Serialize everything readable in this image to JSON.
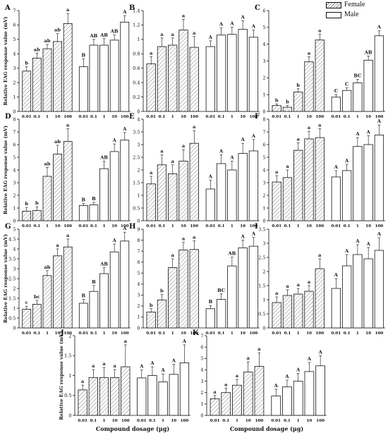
{
  "legend": {
    "female": "Female",
    "male": "Male"
  },
  "colors": {
    "axis": "#111111",
    "female_hatch": "#888888",
    "male_fill": "#ffffff"
  },
  "chart_data": [
    {
      "type": "bar",
      "panel": "A",
      "ylabel": "Relative EAG response value (mV)",
      "xlabel": "",
      "ylim": [
        0,
        7
      ],
      "yticks": [
        0,
        1,
        2,
        3,
        4,
        5,
        6,
        7
      ],
      "categories": [
        "0.01",
        "0.1",
        "1",
        "10",
        "100"
      ],
      "series": [
        {
          "name": "Female",
          "values": [
            2.8,
            3.7,
            4.35,
            4.85,
            6.1
          ],
          "errors": [
            0.3,
            0.35,
            0.3,
            0.55,
            0.7
          ],
          "letters": [
            "b",
            "ab",
            "ab",
            "ab",
            "a"
          ]
        },
        {
          "name": "Male",
          "values": [
            3.1,
            4.6,
            4.6,
            4.95,
            6.2
          ],
          "errors": [
            0.55,
            0.4,
            0.45,
            0.35,
            0.45
          ],
          "letters": [
            "B",
            "AB",
            "AB",
            "AB",
            "A"
          ]
        }
      ]
    },
    {
      "type": "bar",
      "panel": "B",
      "ylabel": "",
      "xlabel": "",
      "ylim": [
        0,
        1.4
      ],
      "yticks": [
        0,
        0.2,
        0.4,
        0.6,
        0.8,
        1.0,
        1.2,
        1.4
      ],
      "categories": [
        "0.01",
        "0.1",
        "1",
        "10",
        "100"
      ],
      "series": [
        {
          "name": "Female",
          "values": [
            0.66,
            0.9,
            0.92,
            1.13,
            0.89
          ],
          "errors": [
            0.1,
            0.12,
            0.1,
            0.15,
            0.15
          ],
          "letters": [
            "a",
            "a",
            "a",
            "a",
            "a"
          ]
        },
        {
          "name": "Male",
          "values": [
            0.9,
            1.06,
            1.07,
            1.14,
            1.03
          ],
          "errors": [
            0.08,
            0.1,
            0.1,
            0.12,
            0.1
          ],
          "letters": [
            "A",
            "A",
            "A",
            "A",
            "A"
          ]
        }
      ]
    },
    {
      "type": "bar",
      "panel": "C",
      "ylabel": "",
      "xlabel": "",
      "ylim": [
        0,
        6
      ],
      "yticks": [
        0,
        1,
        2,
        3,
        4,
        5,
        6
      ],
      "categories": [
        "0.01",
        "0.1",
        "1",
        "10",
        "100"
      ],
      "series": [
        {
          "name": "Female",
          "values": [
            0.35,
            0.25,
            1.15,
            2.95,
            4.25
          ],
          "errors": [
            0.1,
            0.1,
            0.2,
            0.3,
            0.35
          ],
          "letters": [
            "b",
            "b",
            "b",
            "a",
            "a"
          ]
        },
        {
          "name": "Male",
          "values": [
            0.85,
            1.25,
            1.7,
            3.05,
            4.5
          ],
          "errors": [
            0.15,
            0.15,
            0.2,
            0.25,
            0.3
          ],
          "letters": [
            "C",
            "C",
            "BC",
            "AB",
            "A"
          ]
        }
      ]
    },
    {
      "type": "bar",
      "panel": "D",
      "ylabel": "Relative EAG response value (mV)",
      "xlabel": "",
      "ylim": [
        0,
        8
      ],
      "yticks": [
        0,
        1,
        2,
        3,
        4,
        5,
        6,
        7,
        8
      ],
      "categories": [
        "0.01",
        "0.1",
        "1",
        "10",
        "100"
      ],
      "series": [
        {
          "name": "Female",
          "values": [
            0.75,
            0.8,
            3.5,
            5.25,
            6.25
          ],
          "errors": [
            0.3,
            0.3,
            0.7,
            0.7,
            1.0
          ],
          "letters": [
            "b",
            "b",
            "ab",
            "ab",
            "a"
          ]
        },
        {
          "name": "Male",
          "values": [
            1.2,
            1.25,
            4.1,
            5.45,
            6.35
          ],
          "errors": [
            0.15,
            0.2,
            0.6,
            0.6,
            0.6
          ],
          "letters": [
            "B",
            "B",
            "AB",
            "A",
            "A"
          ]
        }
      ]
    },
    {
      "type": "bar",
      "panel": "E",
      "ylabel": "",
      "xlabel": "",
      "ylim": [
        0,
        4.0
      ],
      "yticks": [
        0,
        0.5,
        1.0,
        1.5,
        2.0,
        2.5,
        3.0,
        3.5,
        4.0
      ],
      "categories": [
        "0.01",
        "0.1",
        "1",
        "10",
        "100"
      ],
      "series": [
        {
          "name": "Female",
          "values": [
            1.45,
            2.2,
            1.85,
            2.35,
            3.05
          ],
          "errors": [
            0.3,
            0.4,
            0.35,
            0.45,
            0.5
          ],
          "letters": [
            "a",
            "a",
            "a",
            "a",
            "a"
          ]
        },
        {
          "name": "Male",
          "values": [
            1.25,
            2.25,
            2.0,
            2.65,
            2.75
          ],
          "errors": [
            0.35,
            0.35,
            0.35,
            0.4,
            0.45
          ],
          "letters": [
            "A",
            "A",
            "A",
            "A",
            "A"
          ]
        }
      ]
    },
    {
      "type": "bar",
      "panel": "F",
      "ylabel": "",
      "xlabel": "",
      "ylim": [
        0,
        8
      ],
      "yticks": [
        0,
        1,
        2,
        3,
        4,
        5,
        6,
        7,
        8
      ],
      "categories": [
        "0.01",
        "0.1",
        "1",
        "10",
        "100"
      ],
      "series": [
        {
          "name": "Female",
          "values": [
            3.05,
            3.4,
            5.55,
            6.45,
            6.55
          ],
          "errors": [
            0.5,
            0.6,
            0.6,
            0.6,
            0.7
          ],
          "letters": [
            "a",
            "a",
            "a",
            "a",
            "a"
          ]
        },
        {
          "name": "Male",
          "values": [
            3.45,
            3.95,
            5.85,
            6.0,
            6.75
          ],
          "errors": [
            0.5,
            0.5,
            0.7,
            0.7,
            0.8
          ],
          "letters": [
            "A",
            "A",
            "A",
            "A",
            "A"
          ]
        }
      ]
    },
    {
      "type": "bar",
      "panel": "G",
      "ylabel": "Relative EAG response value (mV)",
      "xlabel": "",
      "ylim": [
        0,
        5
      ],
      "yticks": [
        0,
        0.5,
        1,
        1.5,
        2,
        2.5,
        3,
        3.5,
        4,
        4.5,
        5
      ],
      "categories": [
        "0.01",
        "0.1",
        "1",
        "10",
        "100"
      ],
      "series": [
        {
          "name": "Female",
          "values": [
            0.95,
            1.2,
            2.65,
            3.65,
            4.1
          ],
          "errors": [
            0.15,
            0.2,
            0.25,
            0.35,
            0.4
          ],
          "letters": [
            "c",
            "bc",
            "ab",
            "a",
            "a"
          ]
        },
        {
          "name": "Male",
          "values": [
            1.25,
            1.85,
            2.75,
            3.85,
            4.4
          ],
          "errors": [
            0.2,
            0.3,
            0.3,
            0.4,
            0.45
          ],
          "letters": [
            "B",
            "B",
            "AB",
            "A",
            "A"
          ]
        }
      ]
    },
    {
      "type": "bar",
      "panel": "H",
      "ylabel": "",
      "xlabel": "",
      "ylim": [
        0,
        9
      ],
      "yticks": [
        0,
        1,
        2,
        3,
        4,
        5,
        6,
        7,
        8,
        9
      ],
      "categories": [
        "0.01",
        "0.1",
        "1",
        "10",
        "100"
      ],
      "series": [
        {
          "name": "Female",
          "values": [
            1.45,
            2.55,
            5.5,
            7.1,
            7.15
          ],
          "errors": [
            0.3,
            0.5,
            0.8,
            0.7,
            0.8
          ],
          "letters": [
            "b",
            "b",
            "a",
            "a",
            "a"
          ]
        },
        {
          "name": "Male",
          "values": [
            1.75,
            2.6,
            5.65,
            7.3,
            7.45
          ],
          "errors": [
            0.3,
            0.5,
            0.8,
            0.7,
            0.8
          ],
          "letters": [
            "B",
            "BC",
            "AB",
            "A",
            "A"
          ]
        }
      ]
    },
    {
      "type": "bar",
      "panel": "I",
      "ylabel": "",
      "xlabel": "",
      "ylim": [
        0,
        3.5
      ],
      "yticks": [
        0,
        0.5,
        1.0,
        1.5,
        2.0,
        2.5,
        3.0,
        3.5
      ],
      "categories": [
        "0.01",
        "0.1",
        "1",
        "10",
        "100"
      ],
      "series": [
        {
          "name": "Female",
          "values": [
            0.9,
            1.15,
            1.2,
            1.3,
            2.1
          ],
          "errors": [
            0.2,
            0.2,
            0.2,
            0.2,
            0.35
          ],
          "letters": [
            "a",
            "a",
            "a",
            "a",
            "a"
          ]
        },
        {
          "name": "Male",
          "values": [
            1.4,
            2.2,
            2.6,
            2.45,
            2.75
          ],
          "errors": [
            0.35,
            0.4,
            0.35,
            0.4,
            0.45
          ],
          "letters": [
            "A",
            "A",
            "A",
            "A",
            "A"
          ]
        }
      ]
    },
    {
      "type": "bar",
      "panel": "J",
      "ylabel": "Relative EAG response value (mV)",
      "xlabel": "Compound dosage (μg)",
      "ylim": [
        0,
        2.0
      ],
      "yticks": [
        0,
        0.5,
        1.0,
        1.5,
        2.0
      ],
      "categories": [
        "0.01",
        "0.1",
        "1",
        "10",
        "100"
      ],
      "series": [
        {
          "name": "Female",
          "values": [
            0.64,
            0.95,
            0.95,
            0.95,
            1.22
          ],
          "errors": [
            0.12,
            0.2,
            0.25,
            0.2,
            0.55
          ],
          "letters": [
            "a",
            "a",
            "a",
            "a",
            "a"
          ]
        },
        {
          "name": "Male",
          "values": [
            0.94,
            1.0,
            0.84,
            1.03,
            1.32
          ],
          "errors": [
            0.2,
            0.22,
            0.2,
            0.25,
            0.45
          ],
          "letters": [
            "A",
            "A",
            "A",
            "A",
            "A"
          ]
        }
      ]
    },
    {
      "type": "bar",
      "panel": "K",
      "ylabel": "",
      "xlabel": "Compound dosage (μg)",
      "ylim": [
        0,
        7
      ],
      "yticks": [
        0,
        1,
        2,
        3,
        4,
        5,
        6,
        7
      ],
      "categories": [
        "0.01",
        "0.1",
        "1",
        "10",
        "100"
      ],
      "series": [
        {
          "name": "Female",
          "values": [
            1.45,
            2.0,
            2.65,
            3.8,
            4.3
          ],
          "errors": [
            0.3,
            0.4,
            0.5,
            0.9,
            1.2
          ],
          "letters": [
            "a",
            "a",
            "a",
            "a",
            "a"
          ]
        },
        {
          "name": "Male",
          "values": [
            1.7,
            2.5,
            3.0,
            3.85,
            4.35
          ],
          "errors": [
            0.6,
            0.6,
            0.7,
            0.8,
            0.9
          ],
          "letters": [
            "A",
            "A",
            "A",
            "A",
            "A"
          ]
        }
      ]
    }
  ]
}
